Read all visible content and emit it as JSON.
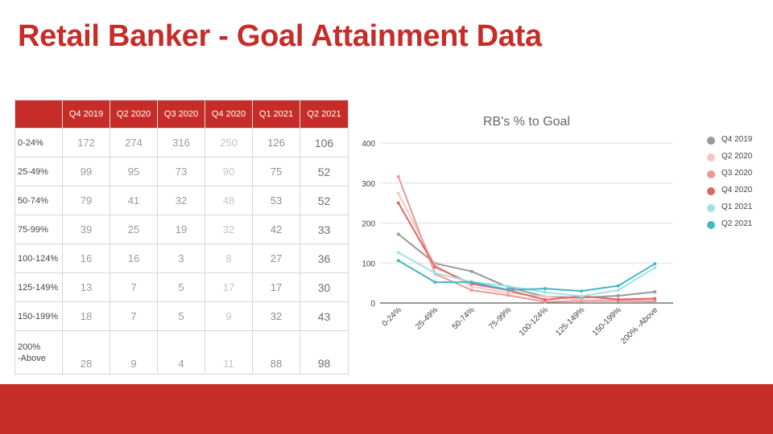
{
  "slide": {
    "title": "Retail Banker - Goal Attainment Data",
    "accent_color": "#c62d28"
  },
  "table": {
    "header_blank": "",
    "columns": [
      "Q4 2019",
      "Q2 2020",
      "Q3 2020",
      "Q4 2020",
      "Q1 2021",
      "Q2 2021"
    ],
    "rows": [
      {
        "label": "0-24%",
        "values": [
          "172",
          "274",
          "316",
          "250",
          "126",
          "106"
        ]
      },
      {
        "label": "25-49%",
        "values": [
          "99",
          "95",
          "73",
          "90",
          "75",
          "52"
        ]
      },
      {
        "label": "50-74%",
        "values": [
          "79",
          "41",
          "32",
          "48",
          "53",
          "52"
        ]
      },
      {
        "label": "75-99%",
        "values": [
          "39",
          "25",
          "19",
          "32",
          "42",
          "33"
        ]
      },
      {
        "label": "100-124%",
        "values": [
          "16",
          "16",
          "3",
          "8",
          "27",
          "36"
        ]
      },
      {
        "label": "125-149%",
        "values": [
          "13",
          "7",
          "5",
          "17",
          "17",
          "30"
        ]
      },
      {
        "label": "150-199%",
        "values": [
          "18",
          "7",
          "5",
          "9",
          "32",
          "43"
        ]
      },
      {
        "label": "200%\n-Above",
        "values": [
          "28",
          "9",
          "4",
          "11",
          "88",
          "98"
        ]
      }
    ]
  },
  "chart_data": {
    "type": "line",
    "title": "RB's % to Goal",
    "xlabel": "",
    "ylabel": "",
    "categories": [
      "0-24%",
      "25-49%",
      "50-74%",
      "75-99%",
      "100-124%",
      "125-149%",
      "150-199%",
      "200% -Above"
    ],
    "ylim": [
      0,
      400
    ],
    "yticks": [
      "0",
      "100",
      "200",
      "300",
      "400"
    ],
    "grid": true,
    "legend_position": "right",
    "series": [
      {
        "name": "Q4 2019",
        "color": "#999999",
        "values": [
          172,
          99,
          79,
          39,
          16,
          13,
          18,
          28
        ]
      },
      {
        "name": "Q2 2020",
        "color": "#f4c7c3",
        "values": [
          274,
          95,
          41,
          25,
          16,
          7,
          7,
          9
        ]
      },
      {
        "name": "Q3 2020",
        "color": "#ea9999",
        "values": [
          316,
          73,
          32,
          19,
          3,
          5,
          5,
          4
        ]
      },
      {
        "name": "Q4 2020",
        "color": "#e06666",
        "values": [
          250,
          90,
          48,
          32,
          8,
          17,
          9,
          11
        ]
      },
      {
        "name": "Q1 2021",
        "color": "#a2e1e6",
        "values": [
          126,
          75,
          53,
          42,
          27,
          17,
          32,
          88
        ]
      },
      {
        "name": "Q2 2021",
        "color": "#45b8c2",
        "values": [
          106,
          52,
          52,
          33,
          36,
          30,
          43,
          98
        ]
      }
    ]
  }
}
